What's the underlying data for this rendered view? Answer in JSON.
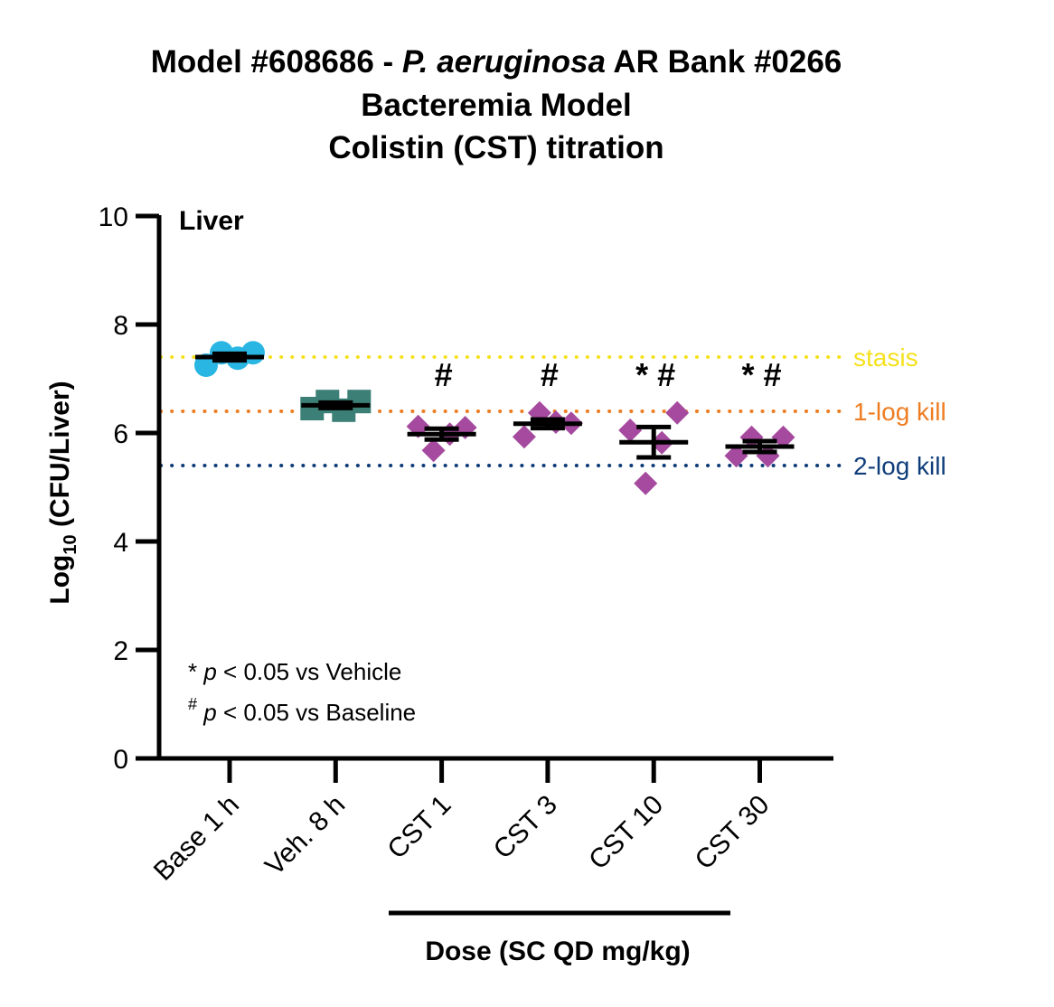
{
  "title": {
    "line1_prefix": "Model #608686 - ",
    "line1_italic": "P. aeruginosa",
    "line1_suffix": " AR Bank #0266",
    "line2": "Bacteremia Model",
    "line3": "Colistin (CST) titration"
  },
  "colors": {
    "baseline": "#29B6E3",
    "vehicle": "#3B7F76",
    "treatment": "#A54A9E",
    "stasis": "#F5E11E",
    "one_log": "#EE7D22",
    "two_log": "#0F3D7A"
  },
  "chart_data": {
    "type": "scatter",
    "panel_label": "Liver",
    "ylabel_prefix": "Log",
    "ylabel_sub": "10",
    "ylabel_suffix": " (CFU/Liver)",
    "xlabel": "Dose (SC QD mg/kg)",
    "ylim": [
      0,
      10
    ],
    "yticks": [
      "0",
      "2",
      "4",
      "6",
      "8",
      "10"
    ],
    "categories": [
      "Base 1 h",
      "Veh. 8 h",
      "CST 1",
      "CST 3",
      "CST 10",
      "CST 30"
    ],
    "groups": [
      {
        "name": "Base 1 h",
        "marker": "circle",
        "color_key": "baseline",
        "points": [
          7.25,
          7.48,
          7.38,
          7.48
        ],
        "mean": 7.4,
        "sem": 0.06,
        "sig": ""
      },
      {
        "name": "Veh. 8 h",
        "marker": "square",
        "color_key": "vehicle",
        "points": [
          6.45,
          6.58,
          6.42,
          6.58
        ],
        "mean": 6.51,
        "sem": 0.05,
        "sig": ""
      },
      {
        "name": "CST 1",
        "marker": "diamond",
        "color_key": "treatment",
        "points": [
          6.12,
          5.68,
          5.98,
          6.1
        ],
        "mean": 5.98,
        "sem": 0.1,
        "sig": "#"
      },
      {
        "name": "CST 3",
        "marker": "diamond",
        "color_key": "treatment",
        "points": [
          5.93,
          6.37,
          6.2,
          6.18
        ],
        "mean": 6.17,
        "sem": 0.08,
        "sig": "#"
      },
      {
        "name": "CST 10",
        "marker": "diamond",
        "color_key": "treatment",
        "points": [
          6.05,
          5.07,
          5.82,
          6.37
        ],
        "mean": 5.83,
        "sem": 0.28,
        "sig": "* #"
      },
      {
        "name": "CST 30",
        "marker": "diamond",
        "color_key": "treatment",
        "points": [
          5.58,
          5.92,
          5.58,
          5.92
        ],
        "mean": 5.75,
        "sem": 0.1,
        "sig": "* #"
      }
    ],
    "reference_lines": [
      {
        "label": "stasis",
        "y": 7.4,
        "color_key": "stasis"
      },
      {
        "label": "1-log kill",
        "y": 6.4,
        "color_key": "one_log"
      },
      {
        "label": "2-log kill",
        "y": 5.4,
        "color_key": "two_log"
      }
    ],
    "legend": {
      "line1_symbol": "*",
      "line1_p": "p",
      "line1_rest": " < 0.05 vs Vehicle",
      "line2_symbol": "#",
      "line2_p": "p",
      "line2_rest": " < 0.05 vs Baseline"
    }
  }
}
